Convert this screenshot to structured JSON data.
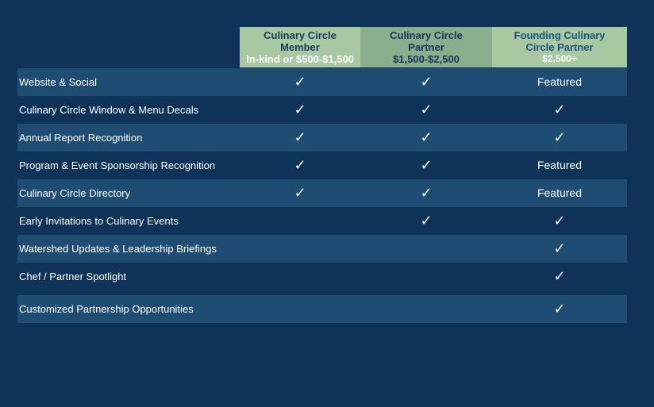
{
  "tiers": [
    {
      "name_line1": "Culinary Circle",
      "name_line2": "Member",
      "price": "In-kind or $500-$1,500"
    },
    {
      "name_line1": "Culinary Circle",
      "name_line2": "Partner",
      "price": "$1,500-$2,500"
    },
    {
      "name_line1": "Founding Culinary",
      "name_line2": "Circle Partner",
      "price": "$2,500+"
    }
  ],
  "check_symbol": "✓",
  "rows": [
    {
      "label": "Website & Social",
      "c1": "✓",
      "c2": "✓",
      "c3": "Featured"
    },
    {
      "label": "Culinary Circle Window & Menu Decals",
      "c1": "✓",
      "c2": "✓",
      "c3": "✓"
    },
    {
      "label": "Annual Report Recognition",
      "c1": "✓",
      "c2": "✓",
      "c3": "✓"
    },
    {
      "label": "Program & Event Sponsorship Recognition",
      "c1": "✓",
      "c2": "✓",
      "c3": "Featured"
    },
    {
      "label": "Culinary Circle Directory",
      "c1": "✓",
      "c2": "✓",
      "c3": "Featured"
    },
    {
      "label": "Early Invitations to Culinary Events",
      "c1": "",
      "c2": "✓",
      "c3": "✓"
    },
    {
      "label": "Watershed Updates & Leadership Briefings",
      "c1": "",
      "c2": "",
      "c3": "✓"
    },
    {
      "label": "Chef / Partner Spotlight",
      "c1": "",
      "c2": "",
      "c3": "✓"
    },
    {
      "label": "Customized Partnership Opportunities",
      "c1": "",
      "c2": "",
      "c3": "✓"
    }
  ],
  "colors": {
    "background": "#0f3358",
    "row_shade": "#1e4c73",
    "header_green_light": "#a8c8a2",
    "header_green_dark": "#8aae8c"
  }
}
